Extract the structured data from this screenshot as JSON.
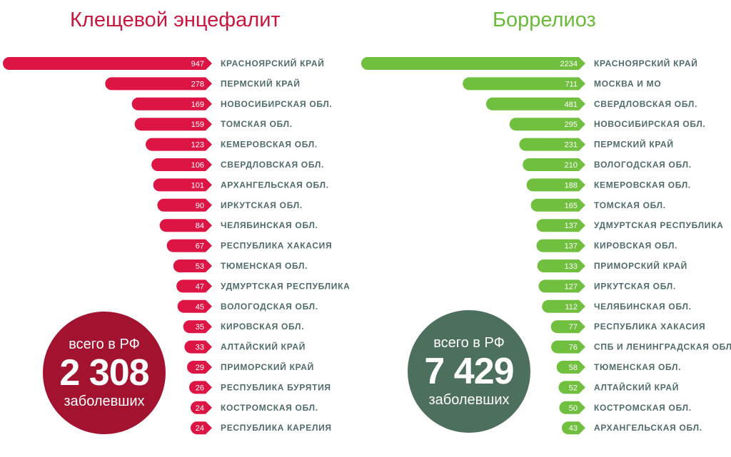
{
  "colors": {
    "tbe_bar": "#dd1545",
    "tbe_title": "#c8173e",
    "tbe_badge": "#a3122f",
    "borr_bar": "#71bf3f",
    "borr_title": "#6aba3a",
    "borr_badge": "#4d6f5e",
    "label_text": "#4f6a6a"
  },
  "chart_data": [
    {
      "type": "bar",
      "orientation": "horizontal",
      "title": "Клещевой энцефалит",
      "categories": [
        "КРАСНОЯРСКИЙ КРАЙ",
        "ПЕРМСКИЙ КРАЙ",
        "НОВОСИБИРСКАЯ ОБЛ.",
        "ТОМСКАЯ ОБЛ.",
        "КЕМЕРОВСКАЯ ОБЛ.",
        "СВЕРДЛОВСКАЯ ОБЛ.",
        "АРХАНГЕЛЬСКАЯ ОБЛ.",
        "ИРКУТСКАЯ ОБЛ.",
        "ЧЕЛЯБИНСКАЯ ОБЛ.",
        "РЕСПУБЛИКА ХАКАСИЯ",
        "ТЮМЕНСКАЯ ОБЛ.",
        "УДМУРТСКАЯ РЕСПУБЛИКА",
        "ВОЛОГОДСКАЯ ОБЛ.",
        "КИРОВСКАЯ ОБЛ.",
        "АЛТАЙСКИЙ КРАЙ",
        "ПРИМОРСКИЙ КРАЙ",
        "РЕСПУБЛИКА БУРЯТИЯ",
        "КОСТРОМСКАЯ ОБЛ.",
        "РЕСПУБЛИКА КАРЕЛИЯ"
      ],
      "values": [
        947,
        278,
        169,
        159,
        123,
        106,
        101,
        90,
        84,
        67,
        53,
        47,
        45,
        35,
        33,
        29,
        26,
        24,
        24
      ],
      "total": {
        "prefix": "всего в РФ",
        "value": "2 308",
        "suffix": "заболевших"
      }
    },
    {
      "type": "bar",
      "orientation": "horizontal",
      "title": "Боррелиоз",
      "categories": [
        "КРАСНОЯРСКИЙ КРАЙ",
        "МОСКВА И МО",
        "СВЕРДЛОВСКАЯ ОБЛ.",
        "НОВОСИБИРСКАЯ ОБЛ.",
        "ПЕРМСКИЙ КРАЙ",
        "ВОЛОГОДСКАЯ ОБЛ.",
        "КЕМЕРОВСКАЯ ОБЛ.",
        "ТОМСКАЯ ОБЛ.",
        "УДМУРТСКАЯ РЕСПУБЛИКА",
        "КИРОВСКАЯ ОБЛ.",
        "ПРИМОРСКИЙ КРАЙ",
        "ИРКУТСКАЯ ОБЛ.",
        "ЧЕЛЯБИНСКАЯ ОБЛ.",
        "РЕСПУБЛИКА ХАКАСИЯ",
        "СПБ И ЛЕНИНГРАДСКАЯ ОБЛ.",
        "ТЮМЕНСКАЯ ОБЛ.",
        "АЛТАЙСКИЙ КРАЙ",
        "КОСТРОМСКАЯ ОБЛ.",
        "АРХАНГЕЛЬСКАЯ ОБЛ."
      ],
      "values": [
        2234,
        711,
        481,
        295,
        231,
        210,
        188,
        165,
        137,
        137,
        133,
        127,
        112,
        77,
        76,
        58,
        52,
        50,
        43
      ],
      "total": {
        "prefix": "всего в РФ",
        "value": "7 429",
        "suffix": "заболевших"
      }
    }
  ]
}
